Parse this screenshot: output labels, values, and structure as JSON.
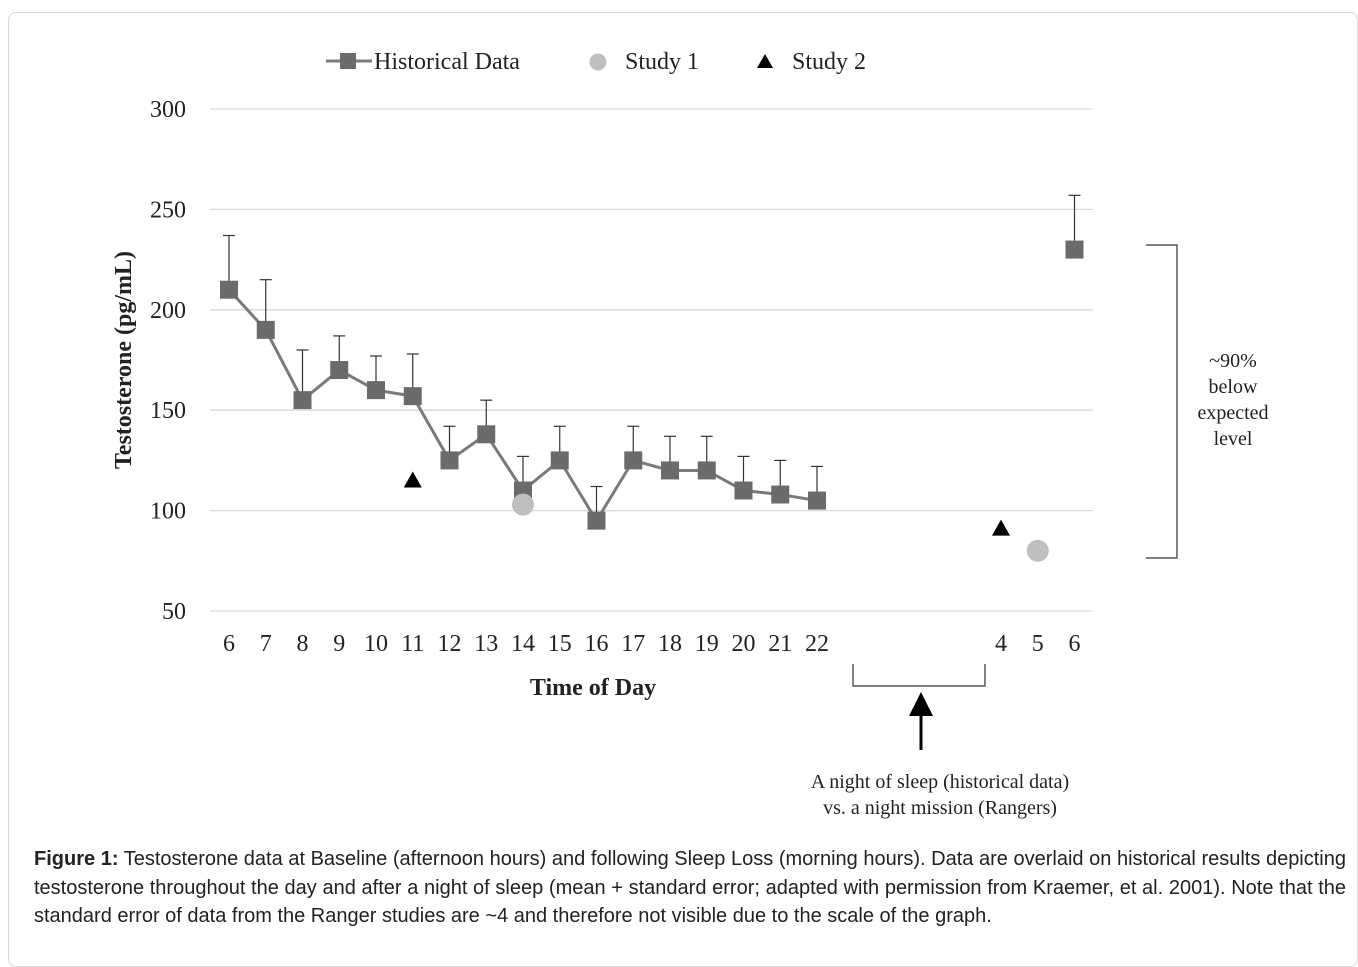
{
  "chart_data": {
    "type": "line",
    "ylabel": "Testosterone (pg/mL)",
    "xlabel": "Time of Day",
    "ylim": [
      50,
      300
    ],
    "yticks": [
      50,
      100,
      150,
      200,
      250,
      300
    ],
    "grid": true,
    "legend_position": "top",
    "categories": [
      "6",
      "7",
      "8",
      "9",
      "10",
      "11",
      "12",
      "13",
      "14",
      "15",
      "16",
      "17",
      "18",
      "19",
      "20",
      "21",
      "22",
      "4",
      "5",
      "6"
    ],
    "series": [
      {
        "name": "Historical Data",
        "marker": "square",
        "color": "#6b6b6b",
        "points": [
          {
            "x": "6",
            "y": 210,
            "err": 27
          },
          {
            "x": "7",
            "y": 190,
            "err": 25
          },
          {
            "x": "8",
            "y": 155,
            "err": 25
          },
          {
            "x": "9",
            "y": 170,
            "err": 17
          },
          {
            "x": "10",
            "y": 160,
            "err": 17
          },
          {
            "x": "11",
            "y": 157,
            "err": 21
          },
          {
            "x": "12",
            "y": 125,
            "err": 17
          },
          {
            "x": "13",
            "y": 138,
            "err": 17
          },
          {
            "x": "14",
            "y": 110,
            "err": 17
          },
          {
            "x": "15",
            "y": 125,
            "err": 17
          },
          {
            "x": "16",
            "y": 95,
            "err": 17
          },
          {
            "x": "17",
            "y": 125,
            "err": 17
          },
          {
            "x": "18",
            "y": 120,
            "err": 17
          },
          {
            "x": "19",
            "y": 120,
            "err": 17
          },
          {
            "x": "20",
            "y": 110,
            "err": 17
          },
          {
            "x": "21",
            "y": 108,
            "err": 17
          },
          {
            "x": "22",
            "y": 105,
            "err": 17
          }
        ],
        "extra_points": [
          {
            "x_index": 19,
            "x": "6",
            "y": 230,
            "err": 27
          }
        ]
      },
      {
        "name": "Study 1",
        "marker": "circle",
        "color": "#bfbfbf",
        "points": [
          {
            "x_index": 8,
            "x": "14",
            "y": 103
          },
          {
            "x_index": 18,
            "x": "5",
            "y": 80
          }
        ]
      },
      {
        "name": "Study 2",
        "marker": "triangle",
        "color": "#000000",
        "points": [
          {
            "x_index": 5,
            "x": "11",
            "y": 115
          },
          {
            "x_index": 17,
            "x": "4",
            "y": 91
          }
        ]
      }
    ],
    "annotations": {
      "bracket_text": [
        "~90%",
        "below",
        "expected",
        "level"
      ],
      "arrow_text": [
        "A night of sleep (historical data)",
        "vs. a night mission (Rangers)"
      ]
    }
  },
  "caption": {
    "label": "Figure 1:",
    "text": " Testosterone data at Baseline (afternoon hours) and following Sleep Loss (morning hours). Data are overlaid on historical results depicting testosterone throughout the day and after a night of sleep (mean + standard error; adapted with permission from Kraemer, et al. 2001). Note that the standard error of data from the Ranger studies are ~4 and therefore not visible due to the scale of the graph."
  }
}
